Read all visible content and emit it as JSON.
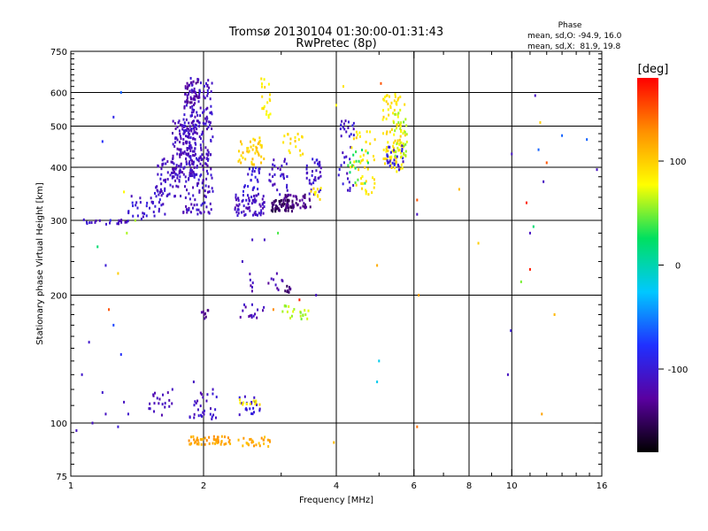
{
  "chart_data": {
    "type": "scatter",
    "title": "Tromsø 20130104 01:30:00-01:31:43",
    "subtitle": "RwPretec (8p)",
    "xlabel": "Frequency [MHz]",
    "ylabel": "Stationary phase Virtual Height [km]",
    "x_scale": "log",
    "y_scale": "log",
    "xlim": [
      1,
      16
    ],
    "ylim": [
      75,
      750
    ],
    "x_ticks": [
      1,
      2,
      4,
      6,
      8,
      10,
      16
    ],
    "x_tick_labels": [
      "1",
      "2",
      "4",
      "6",
      "8",
      "10",
      "16"
    ],
    "x_gridlines": [
      2,
      4,
      6,
      8,
      10
    ],
    "y_ticks": [
      75,
      100,
      200,
      300,
      400,
      500,
      600,
      750
    ],
    "y_tick_labels": [
      "75",
      "100",
      "200",
      "300",
      "400",
      "500",
      "600",
      "750"
    ],
    "y_gridlines": [
      100,
      200,
      300,
      400,
      500,
      600
    ],
    "grid": true,
    "phase_stats": {
      "header": "Phase",
      "line1": "mean, sd,O: -94.9, 16.0",
      "line2": "mean, sd,X:  81.9, 19.8"
    },
    "colorbar": {
      "label": "[deg]",
      "min": -180,
      "max": 180,
      "ticks": [
        100,
        0,
        -100
      ],
      "tick_labels": [
        "100",
        "0",
        "-100"
      ],
      "colors": [
        "#000000",
        "#5a00a0",
        "#2030ff",
        "#00c8ff",
        "#00e060",
        "#ffff00",
        "#ff9000",
        "#ff0000"
      ]
    },
    "clusters": [
      {
        "x": [
          1.02,
          1.35
        ],
        "y": [
          293,
          302
        ],
        "phase": -110,
        "n": 20,
        "desc": "low F trace start"
      },
      {
        "x": [
          1.35,
          1.65
        ],
        "y": [
          302,
          345
        ],
        "phase": -105,
        "n": 35
      },
      {
        "x": [
          1.55,
          1.78
        ],
        "y": [
          340,
          420
        ],
        "phase": -110,
        "n": 70
      },
      {
        "x": [
          1.7,
          1.92
        ],
        "y": [
          380,
          520
        ],
        "phase": -115,
        "n": 110
      },
      {
        "x": [
          1.8,
          2.1
        ],
        "y": [
          310,
          650
        ],
        "phase": -110,
        "n": 260
      },
      {
        "x": [
          1.82,
          1.96
        ],
        "y": [
          560,
          640
        ],
        "phase": -125,
        "n": 30
      },
      {
        "x": [
          2.35,
          2.75
        ],
        "y": [
          308,
          345
        ],
        "phase": -110,
        "n": 70
      },
      {
        "x": [
          2.45,
          2.7
        ],
        "y": [
          345,
          400
        ],
        "phase": -100,
        "n": 25
      },
      {
        "x": [
          2.4,
          2.75
        ],
        "y": [
          405,
          470
        ],
        "phase": 100,
        "n": 45
      },
      {
        "x": [
          2.7,
          2.85
        ],
        "y": [
          520,
          650
        ],
        "phase": 85,
        "n": 20
      },
      {
        "x": [
          2.85,
          3.2
        ],
        "y": [
          315,
          335
        ],
        "phase": -150,
        "n": 60
      },
      {
        "x": [
          3.05,
          3.5
        ],
        "y": [
          320,
          345
        ],
        "phase": -135,
        "n": 40
      },
      {
        "x": [
          2.8,
          3.1
        ],
        "y": [
          345,
          420
        ],
        "phase": -110,
        "n": 30
      },
      {
        "x": [
          3.0,
          3.4
        ],
        "y": [
          420,
          480
        ],
        "phase": 95,
        "n": 18
      },
      {
        "x": [
          3.4,
          3.7
        ],
        "y": [
          340,
          420
        ],
        "phase": -105,
        "n": 35
      },
      {
        "x": [
          3.5,
          3.7
        ],
        "y": [
          330,
          360
        ],
        "phase": 90,
        "n": 10
      },
      {
        "x": [
          4.05,
          4.4
        ],
        "y": [
          350,
          520
        ],
        "phase": -105,
        "n": 35
      },
      {
        "x": [
          4.3,
          4.9
        ],
        "y": [
          345,
          490
        ],
        "phase": 90,
        "n": 45
      },
      {
        "x": [
          4.2,
          4.8
        ],
        "y": [
          360,
          440
        ],
        "phase": 30,
        "n": 15
      },
      {
        "x": [
          5.1,
          5.75
        ],
        "y": [
          390,
          600
        ],
        "phase": 90,
        "n": 100
      },
      {
        "x": [
          5.2,
          5.7
        ],
        "y": [
          390,
          450
        ],
        "phase": -100,
        "n": 25
      },
      {
        "x": [
          5.4,
          5.8
        ],
        "y": [
          420,
          560
        ],
        "phase": 60,
        "n": 30
      },
      {
        "x": [
          2.5,
          3.05
        ],
        "y": [
          200,
          225
        ],
        "phase": -120,
        "n": 15
      },
      {
        "x": [
          3.05,
          3.15
        ],
        "y": [
          203,
          210
        ],
        "phase": -140,
        "n": 10
      },
      {
        "x": [
          2.4,
          2.75
        ],
        "y": [
          175,
          190
        ],
        "phase": -115,
        "n": 15
      },
      {
        "x": [
          3.0,
          3.5
        ],
        "y": [
          175,
          190
        ],
        "phase": 60,
        "n": 20
      },
      {
        "x": [
          1.95,
          2.05
        ],
        "y": [
          176,
          186
        ],
        "phase": -130,
        "n": 8
      },
      {
        "x": [
          1.5,
          1.7
        ],
        "y": [
          104,
          118
        ],
        "phase": -115,
        "n": 20
      },
      {
        "x": [
          1.85,
          2.15
        ],
        "y": [
          102,
          118
        ],
        "phase": -110,
        "n": 30
      },
      {
        "x": [
          2.4,
          2.7
        ],
        "y": [
          103,
          117
        ],
        "phase": -100,
        "n": 20
      },
      {
        "x": [
          2.4,
          2.7
        ],
        "y": [
          110,
          114
        ],
        "phase": 90,
        "n": 12
      },
      {
        "x": [
          1.85,
          2.3
        ],
        "y": [
          89,
          93
        ],
        "phase": 120,
        "n": 50
      },
      {
        "x": [
          2.4,
          2.85
        ],
        "y": [
          88,
          93
        ],
        "phase": 115,
        "n": 25
      }
    ],
    "scattered_points": [
      {
        "x": 1.06,
        "y": 130,
        "phase": -105
      },
      {
        "x": 1.1,
        "y": 155,
        "phase": -105
      },
      {
        "x": 1.22,
        "y": 185,
        "phase": 150
      },
      {
        "x": 1.25,
        "y": 525,
        "phase": -90
      },
      {
        "x": 1.3,
        "y": 600,
        "phase": -60
      },
      {
        "x": 1.18,
        "y": 460,
        "phase": -80
      },
      {
        "x": 1.32,
        "y": 350,
        "phase": 80
      },
      {
        "x": 1.23,
        "y": 300,
        "phase": -90
      },
      {
        "x": 1.34,
        "y": 280,
        "phase": 60
      },
      {
        "x": 1.2,
        "y": 235,
        "phase": -100
      },
      {
        "x": 1.28,
        "y": 225,
        "phase": 100
      },
      {
        "x": 1.15,
        "y": 260,
        "phase": 20
      },
      {
        "x": 1.3,
        "y": 145,
        "phase": -80
      },
      {
        "x": 1.25,
        "y": 170,
        "phase": -70
      },
      {
        "x": 1.12,
        "y": 100,
        "phase": -110
      },
      {
        "x": 1.2,
        "y": 105,
        "phase": -110
      },
      {
        "x": 1.32,
        "y": 112,
        "phase": -110
      },
      {
        "x": 1.28,
        "y": 98,
        "phase": -100
      },
      {
        "x": 1.18,
        "y": 118,
        "phase": -105
      },
      {
        "x": 1.35,
        "y": 105,
        "phase": -105
      },
      {
        "x": 1.03,
        "y": 96,
        "phase": -110
      },
      {
        "x": 1.4,
        "y": 300,
        "phase": 60
      },
      {
        "x": 1.38,
        "y": 330,
        "phase": -90
      },
      {
        "x": 1.7,
        "y": 120,
        "phase": -110
      },
      {
        "x": 1.9,
        "y": 125,
        "phase": -110
      },
      {
        "x": 2.1,
        "y": 120,
        "phase": -110
      },
      {
        "x": 2.45,
        "y": 240,
        "phase": -110
      },
      {
        "x": 2.58,
        "y": 270,
        "phase": -110
      },
      {
        "x": 2.75,
        "y": 270,
        "phase": -110
      },
      {
        "x": 2.88,
        "y": 185,
        "phase": 130
      },
      {
        "x": 2.95,
        "y": 280,
        "phase": 40
      },
      {
        "x": 3.3,
        "y": 195,
        "phase": 170
      },
      {
        "x": 3.6,
        "y": 200,
        "phase": -110
      },
      {
        "x": 4.15,
        "y": 620,
        "phase": 90
      },
      {
        "x": 4.0,
        "y": 560,
        "phase": 80
      },
      {
        "x": 3.95,
        "y": 90,
        "phase": 110
      },
      {
        "x": 5.05,
        "y": 630,
        "phase": 150
      },
      {
        "x": 4.95,
        "y": 235,
        "phase": 115
      },
      {
        "x": 5.0,
        "y": 140,
        "phase": -20
      },
      {
        "x": 4.95,
        "y": 125,
        "phase": -20
      },
      {
        "x": 6.1,
        "y": 335,
        "phase": 150
      },
      {
        "x": 6.1,
        "y": 310,
        "phase": -110
      },
      {
        "x": 6.15,
        "y": 200,
        "phase": 120
      },
      {
        "x": 6.1,
        "y": 98,
        "phase": 140
      },
      {
        "x": 7.6,
        "y": 355,
        "phase": 110
      },
      {
        "x": 8.4,
        "y": 265,
        "phase": 100
      },
      {
        "x": 9.8,
        "y": 130,
        "phase": -110
      },
      {
        "x": 9.95,
        "y": 165,
        "phase": -100
      },
      {
        "x": 10.0,
        "y": 430,
        "phase": -110
      },
      {
        "x": 10.8,
        "y": 330,
        "phase": 170
      },
      {
        "x": 11.0,
        "y": 230,
        "phase": 170
      },
      {
        "x": 11.2,
        "y": 290,
        "phase": 20
      },
      {
        "x": 11.3,
        "y": 590,
        "phase": -110
      },
      {
        "x": 11.5,
        "y": 440,
        "phase": -60
      },
      {
        "x": 11.6,
        "y": 510,
        "phase": 100
      },
      {
        "x": 11.8,
        "y": 370,
        "phase": -110
      },
      {
        "x": 11.7,
        "y": 105,
        "phase": 120
      },
      {
        "x": 12.5,
        "y": 180,
        "phase": 110
      },
      {
        "x": 12.0,
        "y": 410,
        "phase": 150
      },
      {
        "x": 13.0,
        "y": 475,
        "phase": -60
      },
      {
        "x": 14.8,
        "y": 465,
        "phase": -60
      },
      {
        "x": 15.6,
        "y": 395,
        "phase": -110
      },
      {
        "x": 11.0,
        "y": 280,
        "phase": -110
      },
      {
        "x": 10.5,
        "y": 215,
        "phase": 50
      }
    ]
  }
}
